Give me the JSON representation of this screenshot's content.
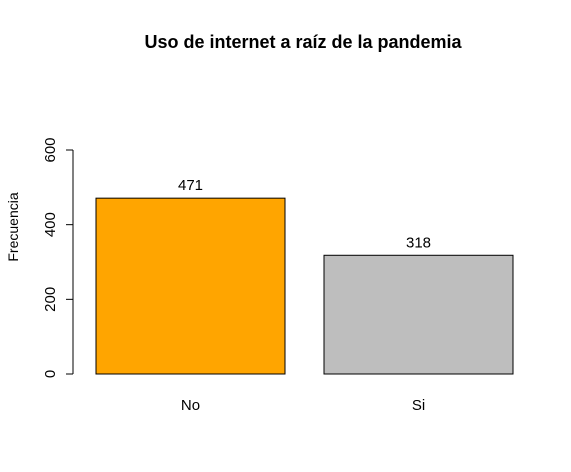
{
  "chart_data": {
    "type": "bar",
    "title": "Uso de internet a raíz de la pandemia",
    "xlabel": "",
    "ylabel": "Frecuencia",
    "categories": [
      "No",
      "Si"
    ],
    "values": [
      471,
      318
    ],
    "data_labels": [
      "471",
      "318"
    ],
    "colors": [
      "#FFA500",
      "#BEBEBE"
    ],
    "ylim": [
      0,
      600
    ],
    "yticks": [
      0,
      200,
      400,
      600
    ],
    "ytick_labels": [
      "0",
      "200",
      "400",
      "600"
    ],
    "grid": false,
    "legend": "none"
  }
}
